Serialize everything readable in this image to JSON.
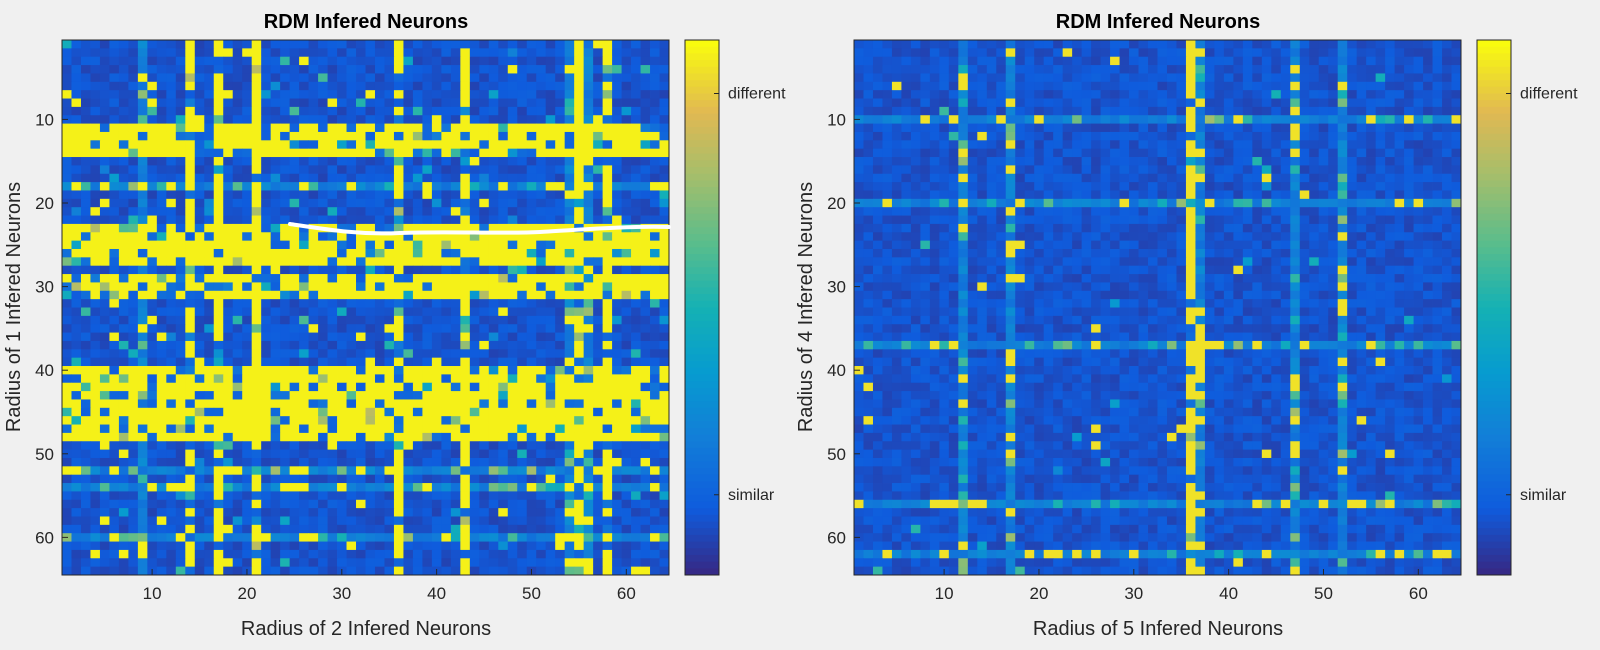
{
  "colors": {
    "background": "#f0f0f0",
    "axis": "#262626",
    "annotation_stroke": "#ffffff"
  },
  "colormap": "parula",
  "chart_data": [
    {
      "type": "heatmap",
      "title": "RDM Infered Neurons",
      "xlabel": "Radius of 2 Infered Neurons",
      "ylabel": "Radius of 1 Infered Neurons",
      "size": 64,
      "xlim": [
        0.5,
        64.5
      ],
      "ylim": [
        0.5,
        64.5
      ],
      "xticks": [
        10,
        20,
        30,
        40,
        50,
        60
      ],
      "yticks": [
        10,
        20,
        30,
        40,
        50,
        60
      ],
      "colorbar": {
        "range": [
          0,
          1
        ],
        "ticks": [
          {
            "value": 0.15,
            "label": "similar"
          },
          {
            "value": 0.9,
            "label": "different"
          }
        ]
      },
      "background_value": 0.1,
      "high_value": 0.98,
      "high_rows": [
        11,
        12,
        13,
        14,
        23,
        24,
        25,
        26,
        27,
        29,
        30,
        31,
        40,
        41,
        42,
        43,
        44,
        45,
        46,
        47,
        48
      ],
      "high_cols": [
        14,
        17,
        21,
        36,
        43,
        55,
        58
      ],
      "light_rows": [
        18,
        52,
        54,
        60
      ],
      "light_cols": [
        9,
        54,
        56
      ],
      "scatter_density": 0.06,
      "annotation": "white hand-drawn stroke near row 23"
    },
    {
      "type": "heatmap",
      "title": "RDM Infered Neurons",
      "xlabel": "Radius of 5 Infered Neurons",
      "ylabel": "Radius of 4 Infered Neurons",
      "size": 64,
      "xlim": [
        0.5,
        64.5
      ],
      "ylim": [
        0.5,
        64.5
      ],
      "xticks": [
        10,
        20,
        30,
        40,
        50,
        60
      ],
      "yticks": [
        10,
        20,
        30,
        40,
        50,
        60
      ],
      "colorbar": {
        "range": [
          0,
          1
        ],
        "ticks": [
          {
            "value": 0.15,
            "label": "similar"
          },
          {
            "value": 0.9,
            "label": "different"
          }
        ]
      },
      "background_value": 0.1,
      "high_value": 0.95,
      "high_rows": [],
      "high_cols": [
        36
      ],
      "light_rows": [
        10,
        20,
        37,
        56,
        62
      ],
      "light_cols": [
        12,
        17,
        36,
        37,
        47,
        52
      ],
      "scatter_density": 0.015,
      "annotation": ""
    }
  ]
}
